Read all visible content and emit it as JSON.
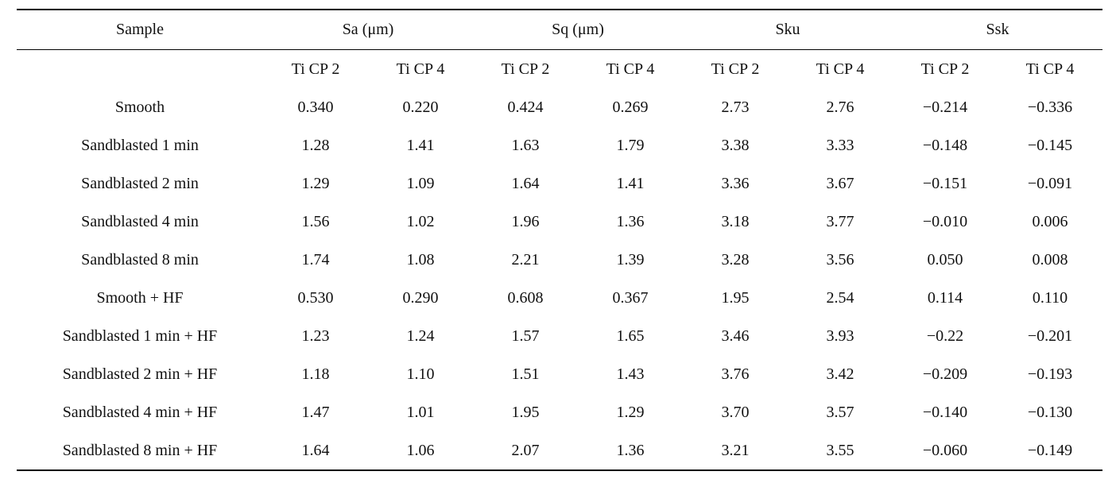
{
  "page": {
    "background_color": "#ffffff",
    "text_color": "#111111",
    "rule_color": "#000000"
  },
  "table": {
    "group_headers": [
      {
        "label": "Sample"
      },
      {
        "label": "Sa (μm)"
      },
      {
        "label": "Sq (μm)"
      },
      {
        "label": "Sku"
      },
      {
        "label": "Ssk"
      }
    ],
    "sub_headers": [
      "Ti CP 2",
      "Ti CP 4",
      "Ti CP 2",
      "Ti CP 4",
      "Ti CP 2",
      "Ti CP 4",
      "Ti CP 2",
      "Ti CP 4"
    ],
    "rows": [
      {
        "label": "Smooth",
        "values": [
          "0.340",
          "0.220",
          "0.424",
          "0.269",
          "2.73",
          "2.76",
          "−0.214",
          "−0.336"
        ]
      },
      {
        "label": "Sandblasted 1 min",
        "values": [
          "1.28",
          "1.41",
          "1.63",
          "1.79",
          "3.38",
          "3.33",
          "−0.148",
          "−0.145"
        ]
      },
      {
        "label": "Sandblasted 2 min",
        "values": [
          "1.29",
          "1.09",
          "1.64",
          "1.41",
          "3.36",
          "3.67",
          "−0.151",
          "−0.091"
        ]
      },
      {
        "label": "Sandblasted 4 min",
        "values": [
          "1.56",
          "1.02",
          "1.96",
          "1.36",
          "3.18",
          "3.77",
          "−0.010",
          "0.006"
        ]
      },
      {
        "label": "Sandblasted 8 min",
        "values": [
          "1.74",
          "1.08",
          "2.21",
          "1.39",
          "3.28",
          "3.56",
          "0.050",
          "0.008"
        ]
      },
      {
        "label": "Smooth + HF",
        "values": [
          "0.530",
          "0.290",
          "0.608",
          "0.367",
          "1.95",
          "2.54",
          "0.114",
          "0.110"
        ]
      },
      {
        "label": "Sandblasted 1 min + HF",
        "values": [
          "1.23",
          "1.24",
          "1.57",
          "1.65",
          "3.46",
          "3.93",
          "−0.22",
          "−0.201"
        ]
      },
      {
        "label": "Sandblasted 2 min + HF",
        "values": [
          "1.18",
          "1.10",
          "1.51",
          "1.43",
          "3.76",
          "3.42",
          "−0.209",
          "−0.193"
        ]
      },
      {
        "label": "Sandblasted 4 min + HF",
        "values": [
          "1.47",
          "1.01",
          "1.95",
          "1.29",
          "3.70",
          "3.57",
          "−0.140",
          "−0.130"
        ]
      },
      {
        "label": "Sandblasted 8 min + HF",
        "values": [
          "1.64",
          "1.06",
          "2.07",
          "1.36",
          "3.21",
          "3.55",
          "−0.060",
          "−0.149"
        ]
      }
    ]
  }
}
